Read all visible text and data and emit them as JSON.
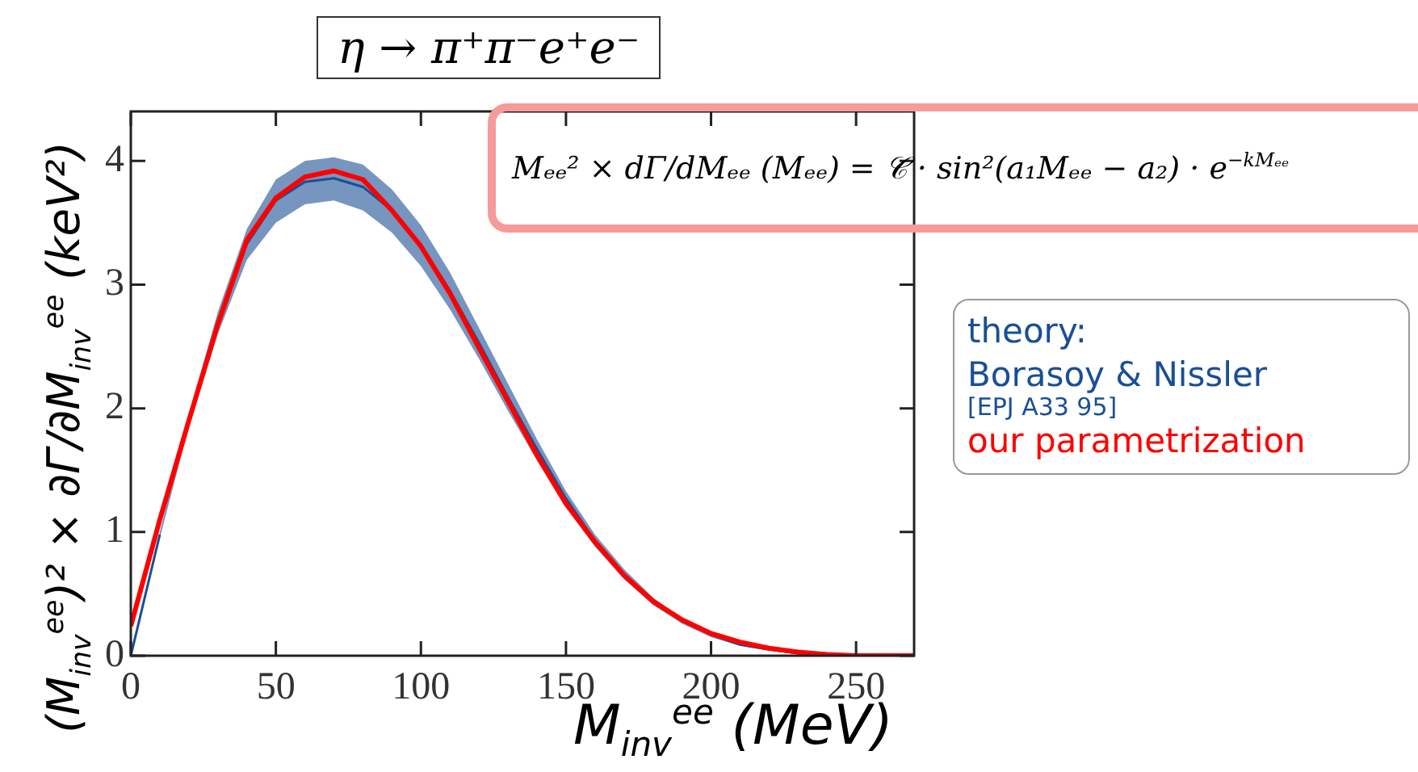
{
  "chart_data": {
    "type": "line",
    "title": "η → π⁺π⁻e⁺e⁻",
    "xlabel": "M$_{inv}$$^{ee}$ (MeV)",
    "ylabel": "(M$_{inv}$$^{ee}$)² × ∂Γ/∂M$_{inv}$$^{ee}$ (keV²)",
    "legend_title": "theory:",
    "annotations": [
      "Mₑₑ² × dΓ/dMₑₑ (Mₑₑ) = 𝒞 · sin²(a₁Mₑₑ − a₂) · e$^{−kMₑₑ}$",
      "[EPJ A33 95]"
    ],
    "x": [
      0,
      10,
      20,
      30,
      40,
      50,
      60,
      70,
      80,
      90,
      100,
      110,
      120,
      130,
      140,
      150,
      160,
      170,
      180,
      190,
      200,
      210,
      220,
      230,
      240,
      250,
      270
    ],
    "series": [
      {
        "name": "Borasoy & Nissler",
        "color": "#1a4f94",
        "values": [
          0,
          0.98,
          null,
          2.69,
          3.33,
          3.68,
          3.83,
          3.86,
          3.79,
          3.6,
          3.32,
          2.95,
          2.53,
          2.09,
          1.67,
          1.27,
          0.93,
          0.66,
          0.44,
          0.28,
          0.17,
          0.09,
          0.05,
          0.02,
          0.01,
          null,
          null
        ],
        "lower": [
          0,
          0.95,
          1.85,
          2.6,
          3.2,
          3.5,
          3.65,
          3.68,
          3.6,
          3.42,
          3.15,
          2.8,
          2.4,
          1.98,
          1.58,
          1.2,
          0.88,
          0.62,
          0.41,
          0.26,
          0.15,
          0.08,
          0.04,
          0.02,
          0.01,
          0,
          0
        ],
        "upper": [
          0,
          1.0,
          1.95,
          2.78,
          3.45,
          3.85,
          4.0,
          4.03,
          3.97,
          3.77,
          3.48,
          3.1,
          2.65,
          2.2,
          1.75,
          1.33,
          0.98,
          0.7,
          0.47,
          0.3,
          0.18,
          0.1,
          0.05,
          0.02,
          0.01,
          0,
          0
        ]
      },
      {
        "name": "our parametrization",
        "color": "#ff0000",
        "values": [
          0.24,
          1.1,
          1.9,
          2.68,
          3.36,
          3.7,
          3.87,
          3.92,
          3.85,
          3.6,
          3.31,
          2.93,
          2.49,
          2.06,
          1.62,
          1.23,
          0.92,
          0.65,
          0.44,
          0.29,
          0.18,
          0.11,
          0.06,
          0.03,
          0.01,
          0,
          0
        ]
      }
    ],
    "xlim": [
      0,
      270
    ],
    "xticks": [
      0,
      50,
      100,
      150,
      200,
      250
    ],
    "ylim": [
      0,
      4.4
    ],
    "yticks": [
      0,
      1,
      2,
      3,
      4
    ],
    "grid": false,
    "legend": "right",
    "marker": "none",
    "line_style": "solid"
  }
}
